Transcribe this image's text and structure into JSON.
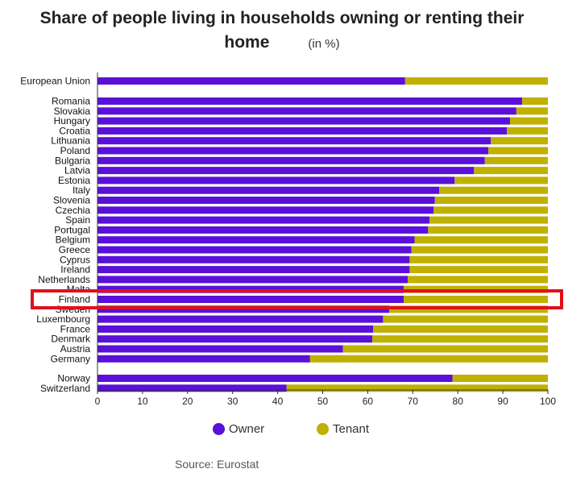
{
  "chart_data": {
    "type": "bar",
    "orientation": "horizontal",
    "stacked": true,
    "title": "Share of people living in households owning or renting their home",
    "unit_label": "(in %)",
    "categories": [
      "European Union",
      "Romania",
      "Slovakia",
      "Hungary",
      "Croatia",
      "Lithuania",
      "Poland",
      "Bulgaria",
      "Latvia",
      "Estonia",
      "Italy",
      "Slovenia",
      "Czechia",
      "Spain",
      "Portugal",
      "Belgium",
      "Greece",
      "Cyprus",
      "Ireland",
      "Netherlands",
      "Malta",
      "Finland",
      "Sweden",
      "Luxembourg",
      "France",
      "Denmark",
      "Austria",
      "Germany",
      "Norway",
      "Switzerland"
    ],
    "series": [
      {
        "name": "Owner",
        "color": "#5a10d8",
        "values": [
          68.3,
          94.3,
          93.0,
          91.6,
          90.9,
          87.3,
          86.8,
          86.0,
          83.6,
          79.3,
          75.9,
          74.9,
          74.6,
          73.7,
          73.4,
          70.4,
          69.7,
          69.3,
          69.3,
          68.9,
          68.0,
          68.0,
          64.8,
          63.4,
          61.2,
          61.0,
          54.5,
          47.2,
          78.8,
          42.0
        ]
      },
      {
        "name": "Tenant",
        "color": "#c0b000",
        "values": [
          31.7,
          5.7,
          7.0,
          8.4,
          9.1,
          12.7,
          13.2,
          14.0,
          16.4,
          20.7,
          24.1,
          25.1,
          25.4,
          26.3,
          26.6,
          29.6,
          30.3,
          30.7,
          30.7,
          31.1,
          32.0,
          32.0,
          35.2,
          36.6,
          38.8,
          39.0,
          45.5,
          52.8,
          21.2,
          58.0
        ]
      }
    ],
    "xlim": [
      0,
      100
    ],
    "xticks": [
      0,
      10,
      20,
      30,
      40,
      50,
      60,
      70,
      80,
      90,
      100
    ],
    "highlight": "Finland",
    "highlight_color": "#e0101a",
    "legend_position": "bottom",
    "grid": false
  },
  "legend": {
    "owner_label": "Owner",
    "tenant_label": "Tenant"
  },
  "source": "Source: Eurostat"
}
